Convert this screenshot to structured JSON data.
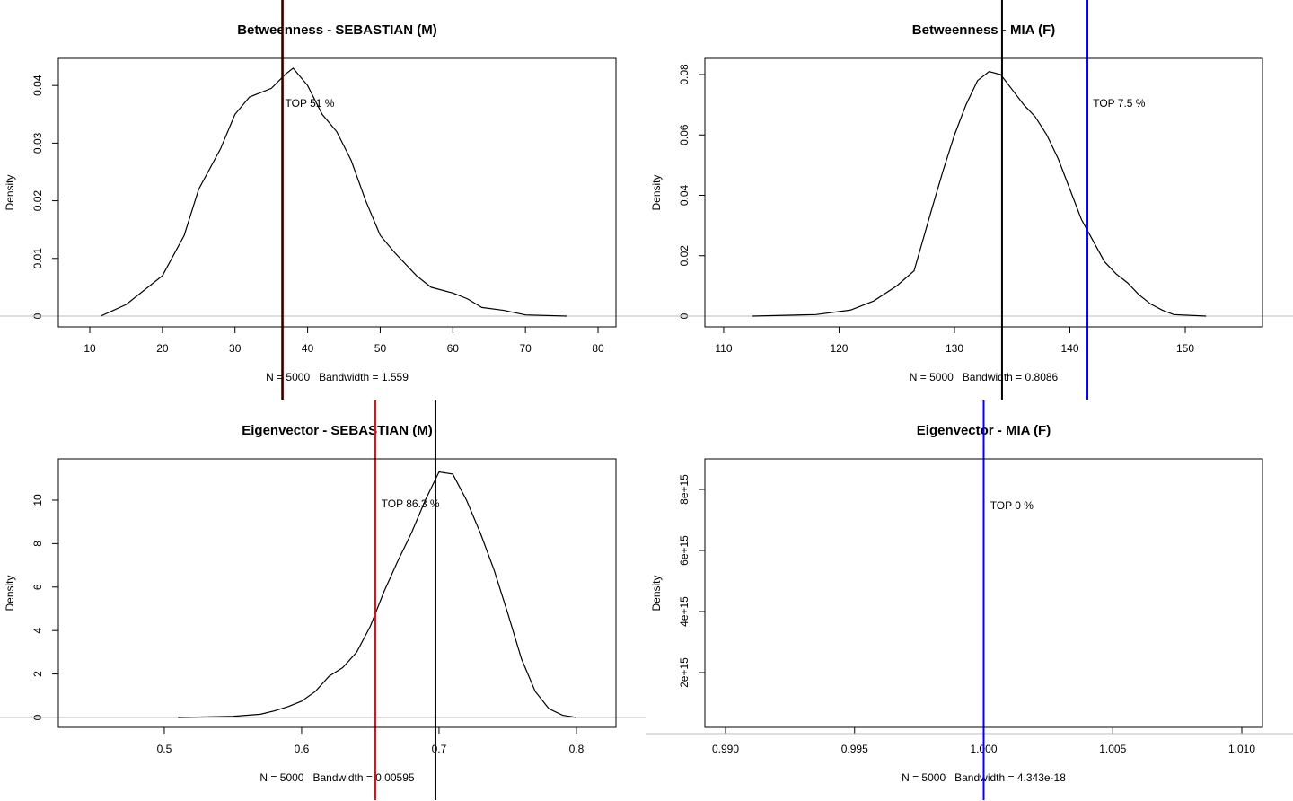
{
  "chart_data": [
    {
      "type": "line",
      "title": "Betweenness - SEBASTIAN (M)",
      "xlabel": "N = 5000   Bandwidth = 1.559",
      "ylabel": "Density",
      "xlim": [
        5.67,
        82.47
      ],
      "ylim": [
        -0.00187,
        0.0447
      ],
      "xticks": [
        10,
        20,
        30,
        40,
        50,
        60,
        70,
        80
      ],
      "yticks": [
        0,
        0.01,
        0.02,
        0.03,
        0.04
      ],
      "series": [
        {
          "name": "density",
          "color": "#000000",
          "x": [
            11.5,
            15,
            20,
            23,
            25,
            28,
            30,
            32,
            35,
            37,
            38,
            40,
            42,
            44,
            46,
            48,
            50,
            52,
            55,
            57,
            60,
            62,
            64,
            67,
            70,
            75.7
          ],
          "values": [
            0,
            0.002,
            0.007,
            0.014,
            0.022,
            0.029,
            0.035,
            0.038,
            0.0395,
            0.042,
            0.043,
            0.04,
            0.035,
            0.032,
            0.027,
            0.02,
            0.014,
            0.011,
            0.007,
            0.005,
            0.004,
            0.003,
            0.0015,
            0.001,
            0.0002,
            0
          ]
        }
      ],
      "hline": {
        "y": 0,
        "color": "#bebebe"
      },
      "vlines": [
        {
          "x": 36.6,
          "color": "#ff0000"
        },
        {
          "x": 36.5,
          "color": "#000000"
        }
      ],
      "annotation": {
        "text": "TOP 51 %",
        "x": 36.9,
        "y": 0.0368,
        "color": "#ff0000"
      }
    },
    {
      "type": "line",
      "title": "Betweenness - MIA (F)",
      "xlabel": "N = 5000   Bandwidth = 0.8086",
      "ylabel": "Density",
      "xlim": [
        108.37,
        156.69
      ],
      "ylim": [
        -0.00357,
        0.08535
      ],
      "xticks": [
        110,
        120,
        130,
        140,
        150
      ],
      "yticks": [
        0,
        0.02,
        0.04,
        0.06,
        0.08
      ],
      "series": [
        {
          "name": "density",
          "color": "#000000",
          "x": [
            112.5,
            118,
            121,
            123,
            125,
            126.5,
            128,
            129,
            130,
            131,
            132,
            133,
            134,
            135,
            136,
            137,
            138,
            139,
            140,
            141,
            142,
            143,
            144,
            145,
            146,
            147,
            148,
            149,
            151.8
          ],
          "values": [
            0,
            0.0005,
            0.002,
            0.005,
            0.01,
            0.015,
            0.035,
            0.048,
            0.06,
            0.07,
            0.078,
            0.081,
            0.08,
            0.075,
            0.07,
            0.066,
            0.06,
            0.052,
            0.042,
            0.032,
            0.025,
            0.018,
            0.014,
            0.011,
            0.007,
            0.004,
            0.002,
            0.0005,
            0
          ]
        }
      ],
      "hline": {
        "y": 0,
        "color": "#bebebe"
      },
      "vlines": [
        {
          "x": 134.12,
          "color": "#000000"
        },
        {
          "x": 141.52,
          "color": "#0000ff"
        }
      ],
      "annotation": {
        "text": "TOP 7.5 %",
        "x": 142.0,
        "y": 0.0702,
        "color": "#0000ff"
      }
    },
    {
      "type": "line",
      "title": "Eigenvector - SEBASTIAN (M)",
      "xlabel": "N = 5000   Bandwidth = 0.00595",
      "ylabel": "Density",
      "xlim": [
        0.4229,
        0.8288
      ],
      "ylim": [
        -0.455,
        11.9
      ],
      "xticks": [
        0.5,
        0.6,
        0.7,
        0.8
      ],
      "yticks": [
        0,
        2,
        4,
        6,
        8,
        10
      ],
      "series": [
        {
          "name": "density",
          "color": "#000000",
          "x": [
            0.51,
            0.55,
            0.57,
            0.58,
            0.59,
            0.6,
            0.61,
            0.62,
            0.63,
            0.64,
            0.65,
            0.66,
            0.67,
            0.68,
            0.69,
            0.7,
            0.71,
            0.72,
            0.73,
            0.74,
            0.75,
            0.76,
            0.77,
            0.78,
            0.79,
            0.8
          ],
          "values": [
            0,
            0.05,
            0.15,
            0.3,
            0.5,
            0.75,
            1.2,
            1.9,
            2.3,
            3.0,
            4.2,
            5.8,
            7.2,
            8.5,
            10.0,
            11.3,
            11.2,
            10.0,
            8.5,
            6.8,
            4.8,
            2.7,
            1.2,
            0.4,
            0.1,
            0
          ]
        }
      ],
      "hline": {
        "y": 0,
        "color": "#bebebe"
      },
      "vlines": [
        {
          "x": 0.6536,
          "color": "#ff0000"
        },
        {
          "x": 0.6974,
          "color": "#000000"
        }
      ],
      "annotation": {
        "text": "TOP 86.3 %",
        "x": 0.658,
        "y": 9.8,
        "color": "#ff0000"
      }
    },
    {
      "type": "line",
      "title": "Eigenvector - MIA (F)",
      "xlabel": "N = 5000   Bandwidth = 4.343e-18",
      "ylabel": "Density",
      "xlim": [
        0.9892,
        1.0108
      ],
      "ylim": [
        206000000000000,
        9000000000000000
      ],
      "xticks": [
        {
          "value": 0.99,
          "label": "0.990"
        },
        {
          "value": 0.995,
          "label": "0.995"
        },
        {
          "value": 1,
          "label": "1.000"
        },
        {
          "value": 1.005,
          "label": "1.005"
        },
        {
          "value": 1.01,
          "label": "1.010"
        }
      ],
      "yticks": [
        {
          "value": 2000000000000000,
          "label": "2e+15"
        },
        {
          "value": 4000000000000000,
          "label": "4e+15"
        },
        {
          "value": 6000000000000000,
          "label": "6e+15"
        },
        {
          "value": 8000000000000000,
          "label": "8e+15"
        }
      ],
      "hline": {
        "y": 0,
        "color": "#bebebe"
      },
      "vlines": [
        {
          "x": 1.0,
          "color": "#0000ff"
        }
      ],
      "annotation": {
        "text": "TOP 0 %",
        "x": 1.00025,
        "y": 7440000000000000,
        "color": "#0000ff"
      }
    }
  ]
}
